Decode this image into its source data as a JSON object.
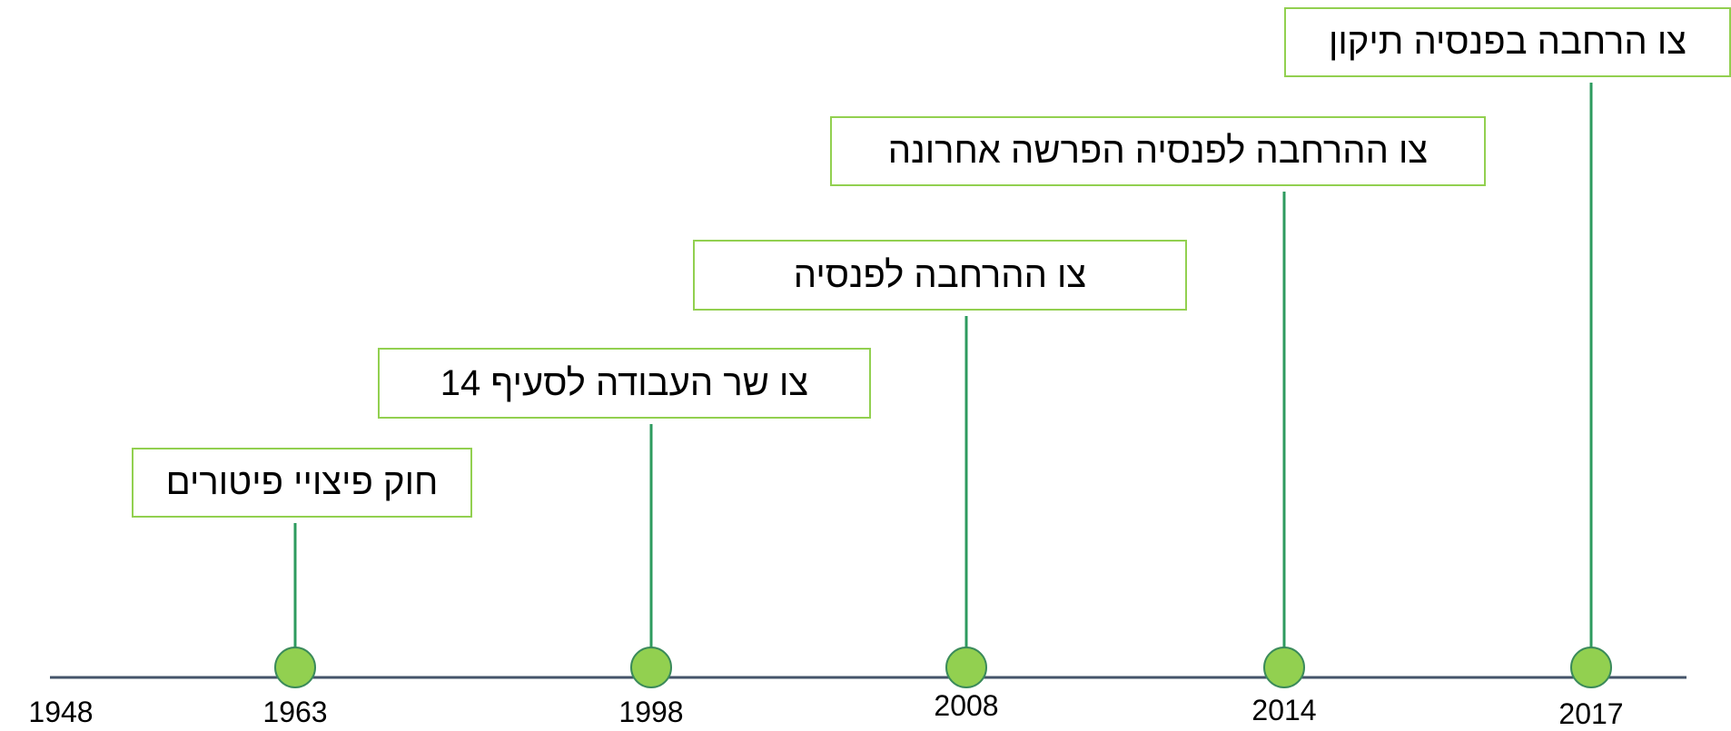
{
  "start_year": "1948",
  "events": [
    {
      "year": "1963",
      "label": "חוק פיצויי פיטורים"
    },
    {
      "year": "1998",
      "label": "צו שר העבודה לסעיף 14"
    },
    {
      "year": "2008",
      "label": "צו ההרחבה לפנסיה"
    },
    {
      "year": "2014",
      "label": "צו ההרחבה לפנסיה הפרשה אחרונה"
    },
    {
      "year": "2017",
      "label": "צו הרחבה בפנסיה תיקון"
    }
  ]
}
